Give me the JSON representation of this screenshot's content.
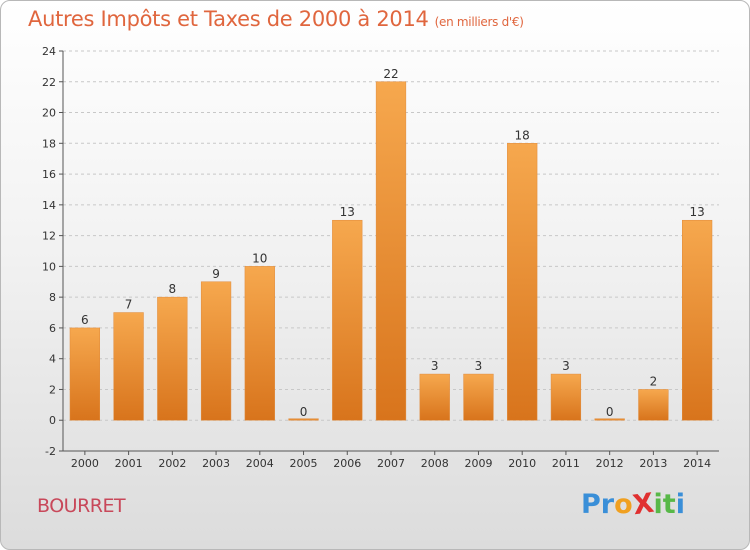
{
  "title": "Autres Impôts et Taxes de 2000 à 2014",
  "subtitle": "(en milliers d'€)",
  "commune": "BOURRET",
  "logo": {
    "text": "ProXiti",
    "letters": [
      {
        "ch": "P",
        "color": "#3a8fd8"
      },
      {
        "ch": "r",
        "color": "#3a8fd8"
      },
      {
        "ch": "o",
        "color": "#f0a020"
      },
      {
        "ch": "X",
        "color": "#e03030"
      },
      {
        "ch": "i",
        "color": "#58b848"
      },
      {
        "ch": "t",
        "color": "#58b848"
      },
      {
        "ch": "i",
        "color": "#3a8fd8"
      }
    ]
  },
  "colors": {
    "title": "#e0663e",
    "commune": "#c8485a",
    "bar_top": "#f6a84e",
    "bar_bottom": "#d8741c",
    "grid": "#c8c8c8"
  },
  "chart_data": {
    "type": "bar",
    "title": "Autres Impôts et Taxes de 2000 à 2014",
    "subtitle": "(en milliers d'€)",
    "xlabel": "",
    "ylabel": "",
    "categories": [
      "2000",
      "2001",
      "2002",
      "2003",
      "2004",
      "2005",
      "2006",
      "2007",
      "2008",
      "2009",
      "2010",
      "2011",
      "2012",
      "2013",
      "2014"
    ],
    "values": [
      6,
      7,
      8,
      9,
      10,
      0,
      13,
      22,
      3,
      3,
      18,
      3,
      0,
      2,
      13
    ],
    "data_labels": [
      "6",
      "7",
      "8",
      "9",
      "10",
      "0",
      "13",
      "22",
      "3",
      "3",
      "18",
      "3",
      "0",
      "2",
      "13"
    ],
    "ylim": [
      -2,
      24
    ],
    "yticks": [
      -2,
      0,
      2,
      4,
      6,
      8,
      10,
      12,
      14,
      16,
      18,
      20,
      22,
      24
    ],
    "grid": true,
    "legend": "none"
  }
}
